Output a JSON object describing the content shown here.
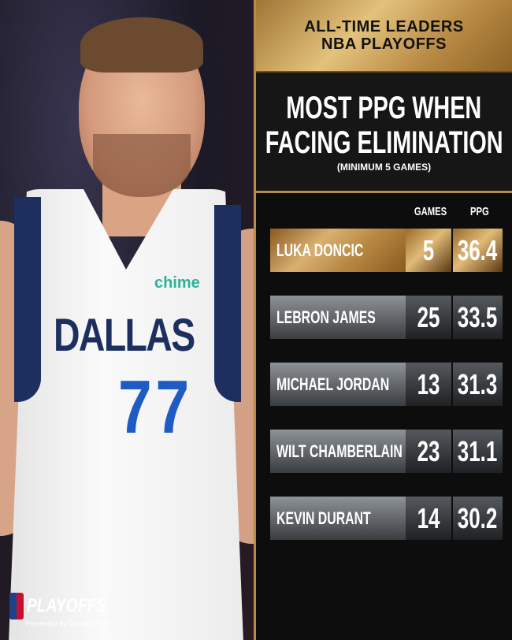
{
  "photo": {
    "jersey_sponsor": "chime",
    "jersey_team": "DALLAS",
    "jersey_number": "77"
  },
  "branding": {
    "logo": "PLAYOFFS",
    "sponsor": "Presented by Google Pixel"
  },
  "header": {
    "line1": "ALL-TIME LEADERS",
    "line2": "NBA PLAYOFFS"
  },
  "title": {
    "line1": "MOST PPG WHEN",
    "line2": "FACING ELIMINATION",
    "subtitle": "(MINIMUM 5 GAMES)"
  },
  "table": {
    "columns": [
      "GAMES",
      "PPG"
    ],
    "rows": [
      {
        "name": "LUKA DONCIC",
        "games": "5",
        "ppg": "36.4",
        "highlight": true
      },
      {
        "name": "LEBRON JAMES",
        "games": "25",
        "ppg": "33.5"
      },
      {
        "name": "MICHAEL JORDAN",
        "games": "13",
        "ppg": "31.3"
      },
      {
        "name": "WILT CHAMBERLAIN",
        "games": "23",
        "ppg": "31.1"
      },
      {
        "name": "KEVIN DURANT",
        "games": "14",
        "ppg": "30.2"
      }
    ]
  },
  "colors": {
    "gold": "#b88c45",
    "background": "#0d0d0d"
  }
}
